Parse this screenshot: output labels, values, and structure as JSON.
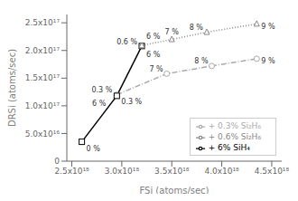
{
  "chart_data": {
    "type": "line",
    "x_label": "FSi (atoms/sec)",
    "y_label": "DRSi (atoms/sec)",
    "xlim": [
      2.45e+18,
      4.6e+18
    ],
    "ylim": [
      0,
      2.65e+17
    ],
    "xticks": [
      {
        "value": 2.5e+18,
        "label": "2.5x10¹⁸"
      },
      {
        "value": 3e+18,
        "label": "3.0x10¹⁸"
      },
      {
        "value": 3.5e+18,
        "label": "3.5x10¹⁸"
      },
      {
        "value": 4e+18,
        "label": "4.0x10¹⁸"
      },
      {
        "value": 4.5e+18,
        "label": "4.5x10¹⁸"
      }
    ],
    "yticks": [
      0,
      {
        "value": 5e+16,
        "label": "5.0x10¹⁶"
      },
      {
        "value": 1e+17,
        "label": "1.0x10¹⁷"
      },
      {
        "value": 1.5e+17,
        "label": "1.5x10¹⁷"
      },
      {
        "value": 2e+17,
        "label": "2.0x10¹⁷"
      },
      {
        "value": 2.5e+17,
        "label": "2.5x10¹⁷"
      }
    ],
    "grid": false,
    "legend": "lower right",
    "series": [
      {
        "name": "+ 0.3% Si₂H₆",
        "color": "#aaaaaa",
        "marker": "circle",
        "line_style": "dashdot",
        "x": [
          2.95e+18,
          3.45e+18,
          3.9e+18,
          4.35e+18
        ],
        "values": [
          1.2e+17,
          1.58e+17,
          1.72e+17,
          1.85e+17
        ]
      },
      {
        "name": "+ 6% SiH₄",
        "color": "#000000",
        "marker": "square",
        "line_style": "solid",
        "x": [
          2.6e+18,
          2.95e+18,
          3.2e+18
        ],
        "values": [
          3.5e+16,
          1.18e+17,
          2.08e+17
        ]
      },
      {
        "name": "+ 0.6% Si₂H₆",
        "color": "#888888",
        "marker": "triangle",
        "line_style": "dotted",
        "x": [
          3.2e+18,
          3.5e+18,
          3.85e+18,
          4.35e+18
        ],
        "values": [
          2.09e+17,
          2.2e+17,
          2.33e+17,
          2.48e+17
        ]
      }
    ],
    "annotations": [
      {
        "text": "0.3 %",
        "x": 2.95e+18,
        "y": 1.2e+17
      },
      {
        "text": "7 %",
        "x": 3.45e+18,
        "y": 1.58e+17
      },
      {
        "text": "8 %",
        "x": 3.9e+18,
        "y": 1.72e+17
      },
      {
        "text": "9 %",
        "x": 4.35e+18,
        "y": 1.85e+17
      },
      {
        "text": "0 %",
        "x": 2.6e+18,
        "y": 3.5e+16
      },
      {
        "text": "0.3 %",
        "x": 2.95e+18,
        "y": 1.18e+17
      },
      {
        "text": "6 %",
        "x": 2.95e+18,
        "y": 1.18e+17
      },
      {
        "text": "6 %",
        "x": 3.2e+18,
        "y": 2.08e+17
      },
      {
        "text": "0.6 %",
        "x": 3.2e+18,
        "y": 2.09e+17
      },
      {
        "text": "7 %",
        "x": 3.5e+18,
        "y": 2.2e+17
      },
      {
        "text": "8 %",
        "x": 3.85e+18,
        "y": 2.33e+17
      },
      {
        "text": "9 %",
        "x": 4.35e+18,
        "y": 2.48e+17
      },
      {
        "text": "6 %",
        "x": 3.2e+18,
        "y": 2.08e+17
      }
    ]
  }
}
